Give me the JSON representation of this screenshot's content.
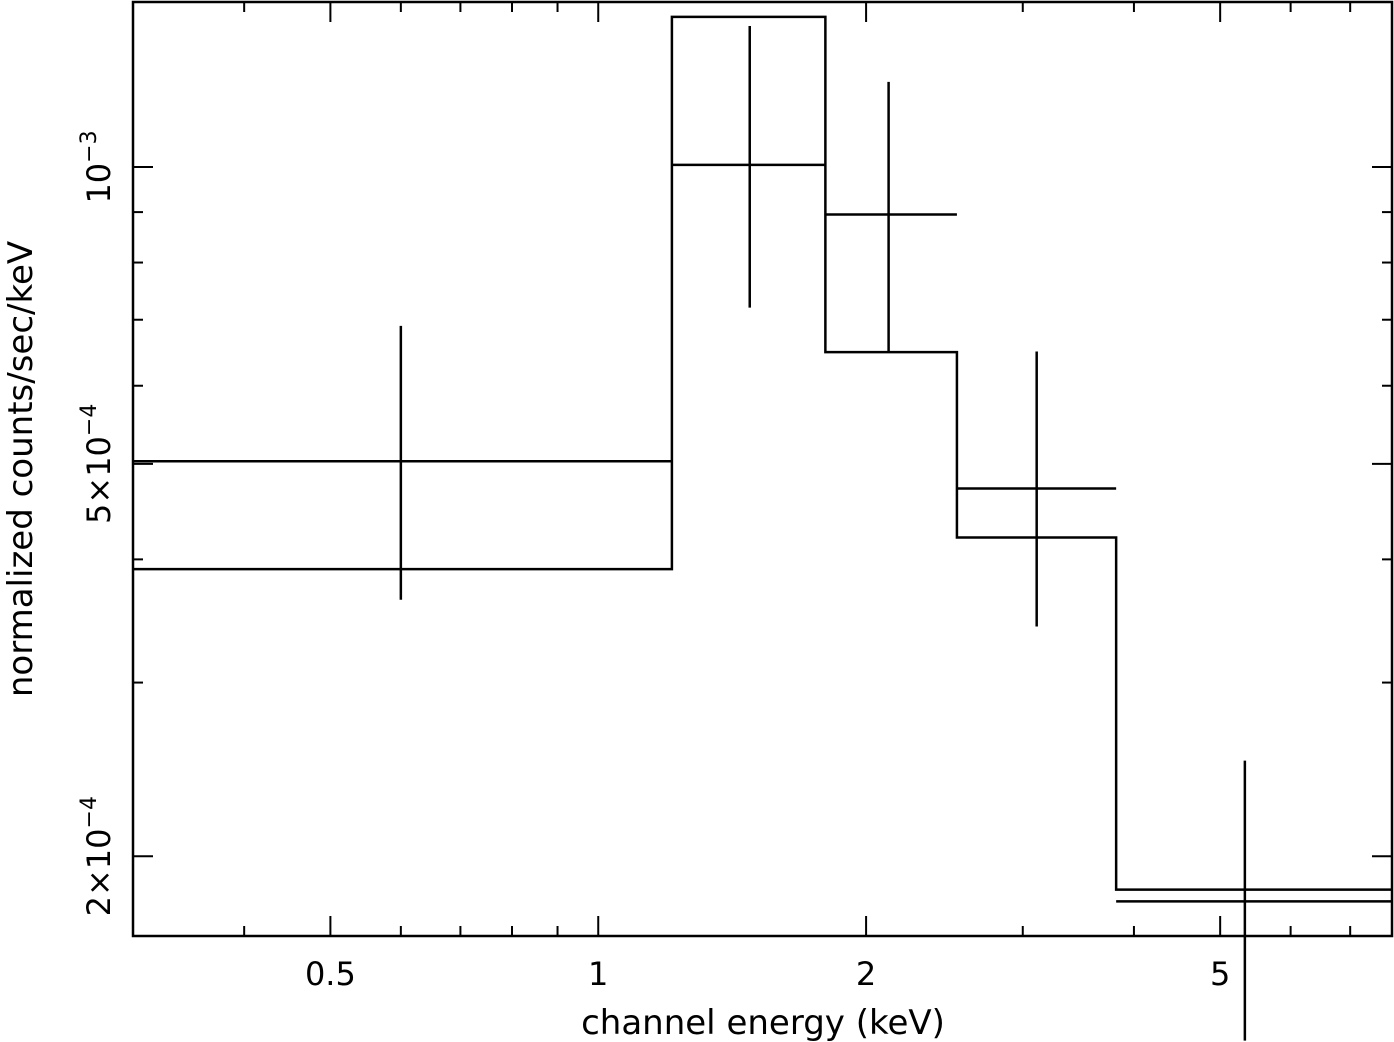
{
  "chart_data": {
    "type": "scatter",
    "title": "",
    "xlabel": "channel energy (keV)",
    "ylabel": "normalized counts/sec/keV",
    "x_scale": "log",
    "y_scale": "log",
    "xlim": [
      0.3,
      7.8
    ],
    "ylim": [
      0.000166,
      0.00147
    ],
    "x_major_ticks": [
      {
        "value": 0.5,
        "label": "0.5"
      },
      {
        "value": 1,
        "label": "1"
      },
      {
        "value": 2,
        "label": "2"
      },
      {
        "value": 5,
        "label": "5"
      }
    ],
    "x_minor_ticks": [
      0.3,
      0.4,
      0.6,
      0.7,
      0.8,
      0.9,
      3,
      4,
      6,
      7
    ],
    "y_major_ticks": [
      {
        "value": 0.001,
        "base": "10",
        "exp": "−3"
      },
      {
        "value": 0.0005,
        "base": "5×10",
        "exp": "−4"
      },
      {
        "value": 0.0002,
        "base": "2×10",
        "exp": "−4"
      }
    ],
    "y_minor_ticks": [
      0.0003,
      0.0004,
      0.0006,
      0.0007,
      0.0008,
      0.0009
    ],
    "series": [
      {
        "kind": "data",
        "points": [
          {
            "x": 0.6,
            "xlo": 0.3,
            "xhi": 1.21,
            "y": 0.000503,
            "ylo": 0.000364,
            "yhi": 0.00069
          },
          {
            "x": 1.48,
            "xlo": 1.21,
            "xhi": 1.8,
            "y": 0.001005,
            "ylo": 0.00072,
            "yhi": 0.00139
          },
          {
            "x": 2.12,
            "xlo": 1.8,
            "xhi": 2.53,
            "y": 0.000895,
            "ylo": 0.00065,
            "yhi": 0.00122
          },
          {
            "x": 3.11,
            "xlo": 2.53,
            "xhi": 3.82,
            "y": 0.000472,
            "ylo": 0.000342,
            "yhi": 0.00065
          },
          {
            "x": 5.33,
            "xlo": 3.82,
            "xhi": 7.8,
            "y": 0.00018,
            "ylo": 0.00013,
            "yhi": 0.00025
          }
        ]
      },
      {
        "kind": "model",
        "steps": [
          {
            "xlo": 0.3,
            "xhi": 1.21,
            "y": 0.000391
          },
          {
            "xlo": 1.21,
            "xhi": 1.8,
            "y": 0.00142
          },
          {
            "xlo": 1.8,
            "xhi": 2.53,
            "y": 0.000649
          },
          {
            "xlo": 2.53,
            "xhi": 3.82,
            "y": 0.000421
          },
          {
            "xlo": 3.82,
            "xhi": 7.8,
            "y": 0.000185
          }
        ]
      }
    ]
  }
}
